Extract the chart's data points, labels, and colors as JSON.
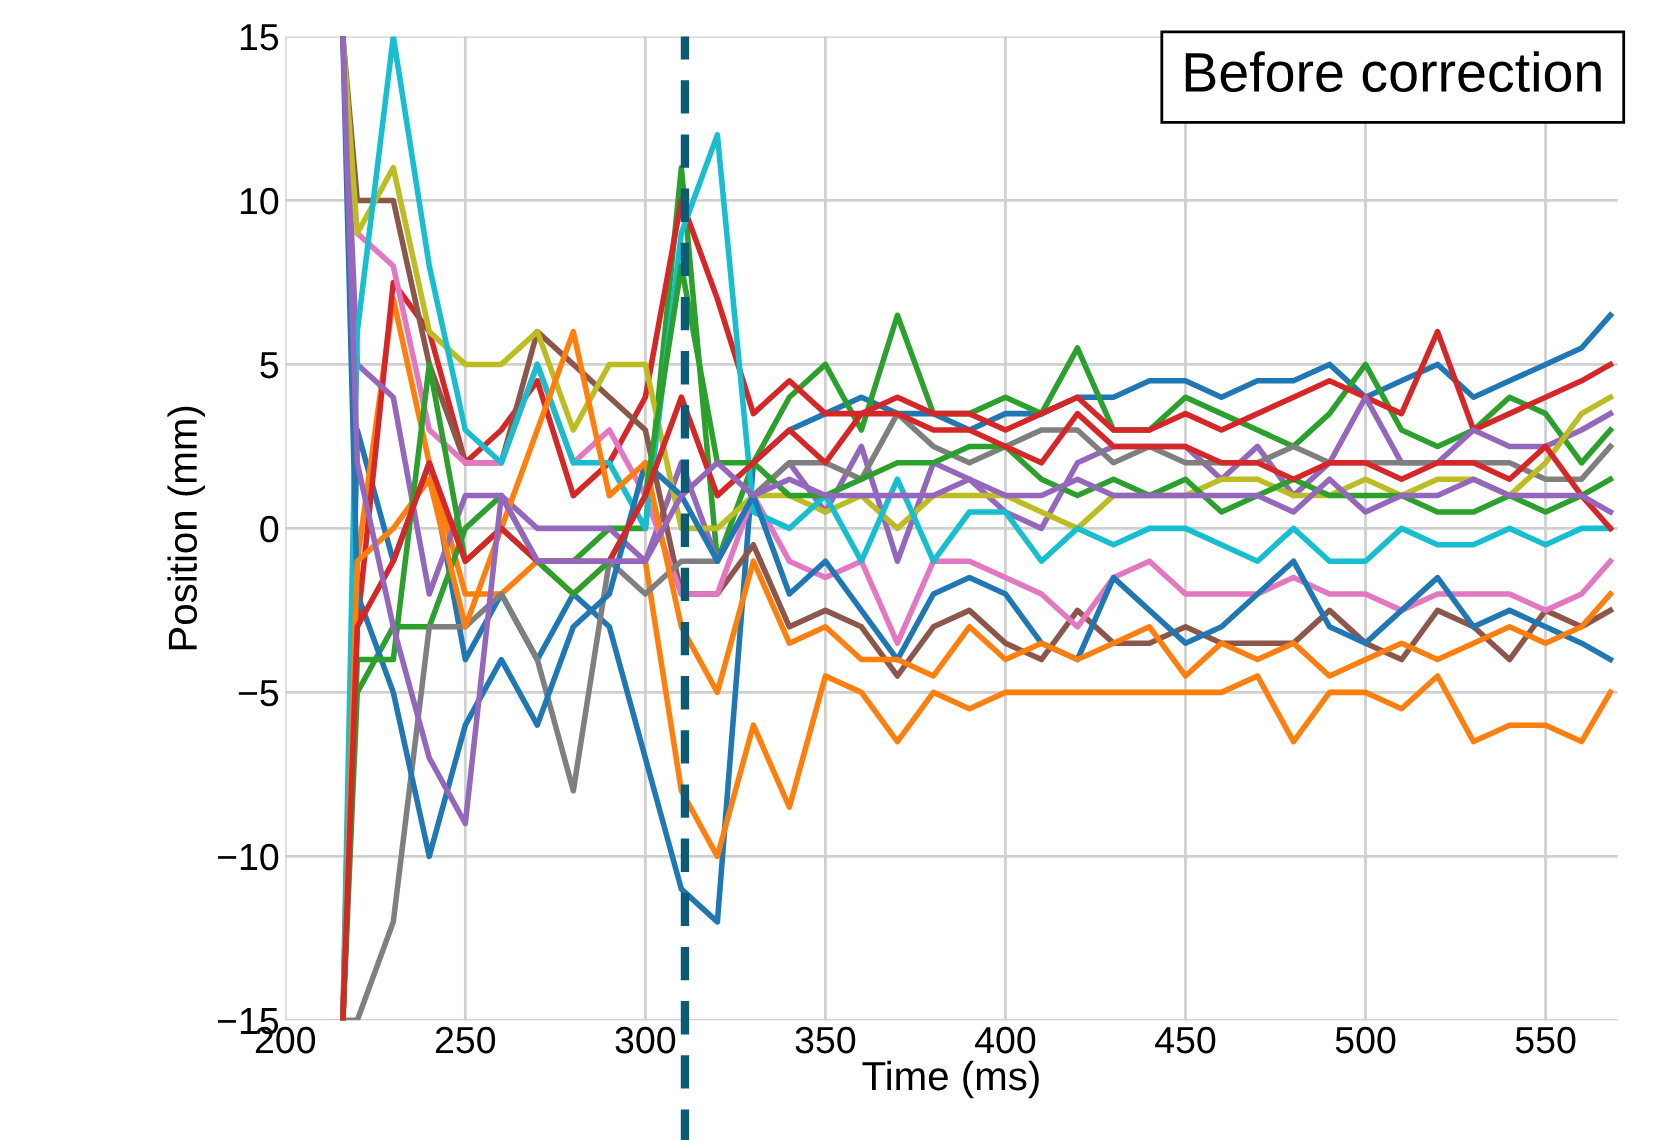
{
  "chart_data": {
    "type": "line",
    "xlabel": "Time (ms)",
    "ylabel": "Position (mm)",
    "annotations": [
      "Before correction"
    ],
    "x": [
      216,
      220,
      230,
      240,
      250,
      260,
      270,
      280,
      290,
      300,
      310,
      320,
      330,
      340,
      350,
      360,
      370,
      380,
      390,
      400,
      410,
      420,
      430,
      440,
      450,
      460,
      470,
      480,
      490,
      500,
      510,
      520,
      530,
      540,
      550,
      560,
      568
    ],
    "series": [
      {
        "color": "#1f77b4",
        "values": [
          -15,
          3,
          -1,
          2,
          -4,
          -2,
          -4,
          -2,
          -3,
          -7,
          -11,
          -12,
          2,
          3,
          3.5,
          4,
          3.5,
          3.5,
          3,
          3.5,
          3.5,
          4,
          4,
          4.5,
          4.5,
          4,
          4.5,
          4.5,
          5,
          4,
          4.5,
          5,
          4,
          4.5,
          5,
          5.5,
          6.5
        ]
      },
      {
        "color": "#ff7f0e",
        "values": [
          -15,
          -1,
          7,
          2,
          -2,
          -2,
          -1,
          -2,
          -1,
          -1,
          -8,
          -10,
          -6,
          -8.5,
          -4.5,
          -5,
          -6.5,
          -5,
          -5.5,
          -5,
          -5,
          -5,
          -5,
          -5,
          -5,
          -5,
          -4.5,
          -6.5,
          -5,
          -5,
          -5.5,
          -4.5,
          -6.5,
          -6,
          -6,
          -6.5,
          -5
        ]
      },
      {
        "color": "#2ca02c",
        "values": [
          -15,
          -5,
          -3,
          -3,
          0,
          1,
          -1,
          -1,
          0,
          0,
          11,
          -1,
          2,
          4,
          5,
          3,
          6.5,
          3.5,
          3.5,
          4,
          3.5,
          5.5,
          3,
          3,
          4,
          3.5,
          3,
          2.5,
          3.5,
          5,
          3,
          2.5,
          3,
          4,
          3.5,
          2,
          3
        ]
      },
      {
        "color": "#d62728",
        "values": [
          -15,
          -3,
          7.5,
          6,
          2,
          3,
          4.5,
          1,
          2,
          4,
          10,
          7,
          3.5,
          4.5,
          3.5,
          3.5,
          4,
          3.5,
          3.5,
          3,
          3.5,
          4,
          3,
          3,
          3.5,
          3,
          3.5,
          4,
          4.5,
          4,
          3.5,
          6,
          3,
          3.5,
          4,
          4.5,
          5
        ]
      },
      {
        "color": "#9467bd",
        "values": [
          15,
          5,
          4,
          -2,
          1,
          1,
          0,
          0,
          0,
          -1,
          2,
          -1,
          1,
          2,
          0.5,
          2.5,
          -1,
          2,
          1.5,
          0.5,
          0,
          2,
          2.5,
          2.5,
          2.5,
          1.5,
          2.5,
          1,
          2,
          4,
          2,
          2,
          3,
          2.5,
          2.5,
          3,
          3.5
        ]
      },
      {
        "color": "#8c564b",
        "values": [
          15,
          10,
          10,
          5,
          2,
          2,
          6,
          5,
          4,
          3,
          -2,
          -2,
          -0.5,
          -3,
          -2.5,
          -3,
          -4.5,
          -3,
          -2.5,
          -3.5,
          -4,
          -2.5,
          -3.5,
          -3.5,
          -3,
          -3.5,
          -3.5,
          -3.5,
          -2.5,
          -3.5,
          -4,
          -2.5,
          -3,
          -4,
          -2.5,
          -3,
          -2.5
        ]
      },
      {
        "color": "#e377c2",
        "values": [
          null,
          9,
          8,
          3,
          2,
          2,
          5,
          2,
          3,
          1,
          -2,
          -2,
          1,
          -1,
          -1.5,
          -1,
          -3.5,
          -1,
          -1,
          -1.5,
          -2,
          -3,
          -1.5,
          -1,
          -2,
          -2,
          -2,
          -1.5,
          -2,
          -2,
          -2.5,
          -2,
          -2,
          -2,
          -2.5,
          -2,
          -1
        ]
      },
      {
        "color": "#7f7f7f",
        "values": [
          -15,
          -15,
          -12,
          -3,
          -3,
          -2,
          -4,
          -8,
          -1,
          -2,
          -1,
          -1,
          1,
          2,
          2,
          1.5,
          3.5,
          2.5,
          2,
          2.5,
          3,
          3,
          2,
          2.5,
          2,
          2,
          2,
          2.5,
          2,
          2,
          2,
          2,
          2,
          2,
          1.5,
          1.5,
          2.5
        ]
      },
      {
        "color": "#bcbd22",
        "values": [
          15,
          9,
          11,
          6,
          5,
          5,
          6,
          3,
          5,
          5,
          0,
          0,
          1,
          1,
          0.5,
          1,
          0,
          1,
          1,
          1,
          0.5,
          0,
          1,
          1,
          1,
          1.5,
          1.5,
          1,
          1,
          1.5,
          1,
          1.5,
          1.5,
          1,
          2,
          3.5,
          4
        ]
      },
      {
        "color": "#17becf",
        "values": [
          -15,
          6,
          15,
          8,
          3,
          2,
          5,
          2,
          2,
          0,
          9,
          12,
          0.5,
          0,
          1,
          -1,
          1.5,
          -1,
          0.5,
          0.5,
          -1,
          0,
          -0.5,
          0,
          0,
          -0.5,
          -1,
          0,
          -1,
          -1,
          0,
          -0.5,
          -0.5,
          0,
          -0.5,
          0,
          0
        ]
      },
      {
        "color": "#1f77b4",
        "values": [
          15,
          -2,
          -5,
          -10,
          -6,
          -4,
          -6,
          -3,
          -2,
          2,
          1,
          -1,
          1,
          -2,
          -1,
          -2.5,
          -4,
          -2,
          -1.5,
          -2,
          -3.5,
          -4,
          -1.5,
          -2.5,
          -3.5,
          -3,
          -2,
          -1,
          -3,
          -3.5,
          -2.5,
          -1.5,
          -3,
          -2.5,
          -3,
          -3.5,
          -4
        ]
      },
      {
        "color": "#ff7f0e",
        "values": [
          -15,
          -1,
          0,
          1.5,
          -3,
          0,
          3,
          6,
          1,
          2,
          -3,
          -5,
          -1,
          -3.5,
          -3,
          -4,
          -4,
          -4.5,
          -3,
          -4,
          -3.5,
          -4,
          -3.5,
          -3,
          -4.5,
          -3.5,
          -4,
          -3.5,
          -4.5,
          -4,
          -3.5,
          -4,
          -3.5,
          -3,
          -3.5,
          -3,
          -2
        ]
      },
      {
        "color": "#2ca02c",
        "values": [
          -15,
          -4,
          -4,
          5,
          -1,
          0,
          -1,
          -2,
          -1,
          1,
          8,
          2,
          2,
          1,
          1,
          1.5,
          2,
          2,
          2.5,
          2.5,
          1.5,
          1,
          1.5,
          1,
          1.5,
          0.5,
          1,
          1.5,
          1,
          1,
          1,
          0.5,
          0.5,
          1,
          0.5,
          1,
          1.5
        ]
      },
      {
        "color": "#d62728",
        "values": [
          -15,
          -3,
          -1,
          2,
          -1,
          0,
          -1,
          -1,
          -1,
          1,
          4,
          1,
          2,
          3,
          2,
          3.5,
          3.5,
          3,
          3,
          2.5,
          2,
          3.5,
          2.5,
          2.5,
          2.5,
          2,
          2,
          1.5,
          2,
          2,
          1.5,
          2,
          2,
          1.5,
          2.5,
          1,
          0
        ]
      },
      {
        "color": "#9467bd",
        "values": [
          15,
          2,
          -3,
          -7,
          -9,
          1,
          -1,
          -1,
          -1,
          -1,
          1,
          2,
          1,
          1.5,
          1,
          1,
          1,
          1,
          1.5,
          1,
          1,
          1.5,
          1,
          1,
          1,
          1,
          1,
          0.5,
          1.5,
          0.5,
          1,
          1,
          1.5,
          1,
          1,
          1,
          0.5
        ]
      }
    ],
    "xlim": [
      200,
      570
    ],
    "ylim": [
      -15,
      15
    ],
    "xticks": [
      200,
      250,
      300,
      350,
      400,
      450,
      500,
      550
    ],
    "yticks": [
      -15,
      -10,
      -5,
      0,
      5,
      10,
      15
    ],
    "ref_lines": [
      {
        "axis": "x",
        "value": 311,
        "color": "#0d5a75",
        "line_style": "dashed"
      }
    ],
    "grid": true,
    "line_style": "solid"
  }
}
